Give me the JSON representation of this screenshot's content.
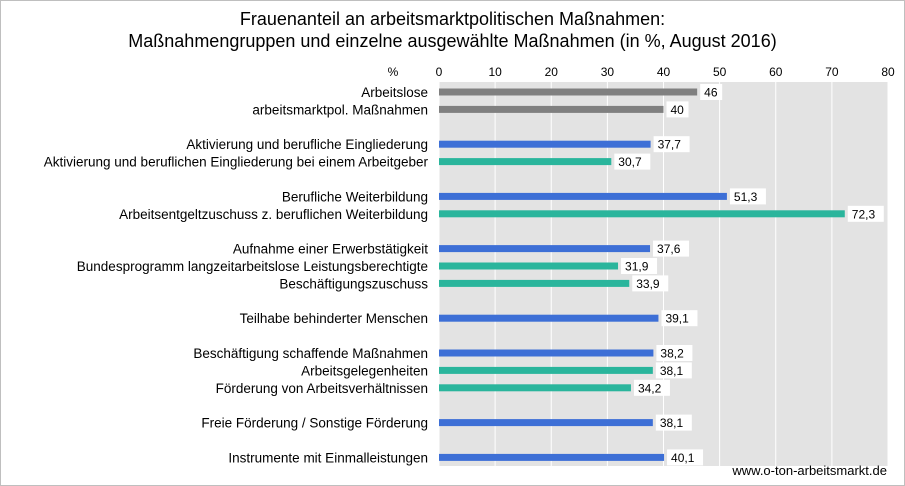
{
  "chart_data": {
    "type": "bar",
    "orientation": "horizontal",
    "title_line1": "Frauenanteil an arbeitsmarktpolitischen Maßnahmen:",
    "title_line2": "Maßnahmengruppen und einzelne ausgewählte Maßnahmen (in %, August 2016)",
    "unit_label": "%",
    "xlim": [
      0,
      80
    ],
    "ticks": [
      "0",
      "10",
      "20",
      "30",
      "40",
      "50",
      "60",
      "70",
      "80"
    ],
    "grid": true,
    "colors": {
      "gray": "#808080",
      "blue": "#3d6fd6",
      "teal": "#2ab59c",
      "plot_bg": "#e3e3e3"
    },
    "categories": [
      {
        "label": "Arbeitslose",
        "value": 46,
        "value_label": "46",
        "color": "gray"
      },
      {
        "label": "arbeitsmarktpol. Maßnahmen",
        "value": 40,
        "value_label": "40",
        "color": "gray"
      },
      {
        "label": "Aktivierung und berufliche Eingliederung",
        "value": 37.7,
        "value_label": "37,7",
        "color": "blue"
      },
      {
        "label": "Aktivierung und beruflichen Eingliederung bei einem Arbeitgeber",
        "value": 30.7,
        "value_label": "30,7",
        "color": "teal"
      },
      {
        "label": "Berufliche Weiterbildung",
        "value": 51.3,
        "value_label": "51,3",
        "color": "blue"
      },
      {
        "label": "Arbeitsentgeltzuschuss z. beruflichen Weiterbildung",
        "value": 72.3,
        "value_label": "72,3",
        "color": "teal"
      },
      {
        "label": "Aufnahme einer Erwerbstätigkeit",
        "value": 37.6,
        "value_label": "37,6",
        "color": "blue"
      },
      {
        "label": "Bundesprogramm langzeitarbeitslose Leistungsberechtigte",
        "value": 31.9,
        "value_label": "31,9",
        "color": "teal"
      },
      {
        "label": "Beschäftigungszuschuss",
        "value": 33.9,
        "value_label": "33,9",
        "color": "teal"
      },
      {
        "label": "Teilhabe behinderter Menschen",
        "value": 39.1,
        "value_label": "39,1",
        "color": "blue"
      },
      {
        "label": "Beschäftigung schaffende Maßnahmen",
        "value": 38.2,
        "value_label": "38,2",
        "color": "blue"
      },
      {
        "label": "Arbeitsgelegenheiten",
        "value": 38.1,
        "value_label": "38,1",
        "color": "teal"
      },
      {
        "label": "Förderung von Arbeitsverhältnissen",
        "value": 34.2,
        "value_label": "34,2",
        "color": "teal"
      },
      {
        "label": "Freie Förderung / Sonstige Förderung",
        "value": 38.1,
        "value_label": "38,1",
        "color": "blue"
      },
      {
        "label": "Instrumente mit Einmalleistungen",
        "value": 40.1,
        "value_label": "40,1",
        "color": "blue"
      }
    ]
  },
  "source": "www.o-ton-arbeitsmarkt.de"
}
